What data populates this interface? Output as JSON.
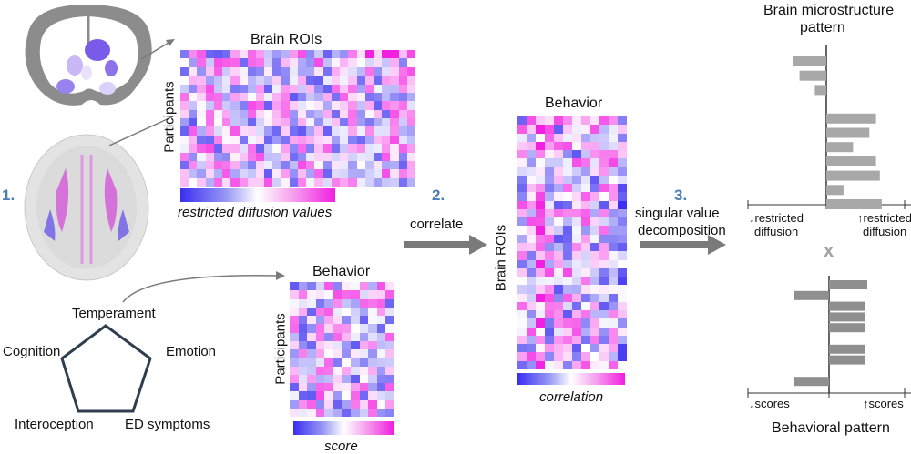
{
  "steps": {
    "s1": "1.",
    "s2": "2.",
    "s3": "3."
  },
  "brain_rois": {
    "title": "Brain ROIs",
    "ylabel": "Participants",
    "colorbar_label": "restricted diffusion values"
  },
  "behavior_left": {
    "title": "Behavior",
    "ylabel": "Participants",
    "colorbar_label": "score"
  },
  "correlation": {
    "title": "Behavior",
    "ylabel": "Brain ROIs",
    "colorbar_label": "correlation"
  },
  "arrows": {
    "correlate": "correlate",
    "svd_line1": "singular value",
    "svd_line2": "decomposition"
  },
  "pentagon": {
    "top": "Temperament",
    "left": "Cognition",
    "right": "Emotion",
    "bottom_left": "Interoception",
    "bottom_right": "ED symptoms"
  },
  "brain_pattern": {
    "title_line1": "Brain microstructure",
    "title_line2": "pattern",
    "left_label_line1": "↓restricted",
    "left_label_line2": "diffusion",
    "right_label_line1": "↑restricted",
    "right_label_line2": "diffusion",
    "values": [
      -0.35,
      -0.28,
      -0.12,
      0,
      0.52,
      0.45,
      0.28,
      0.52,
      0.56,
      0.18,
      0.58
    ]
  },
  "times": "x",
  "behavior_pattern": {
    "title": "Behavioral pattern",
    "left_label": "↓scores",
    "right_label": "↑scores",
    "values": [
      0.42,
      -0.38,
      0.4,
      0.4,
      0.4,
      0,
      0.4,
      0.4,
      0,
      -0.38
    ]
  },
  "colors": {
    "step": "#4a7fb5",
    "neg": "#3a2ef0",
    "pos": "#f21ee0",
    "bar": "#a8a8a8",
    "arrow": "#7a7a7a"
  }
}
